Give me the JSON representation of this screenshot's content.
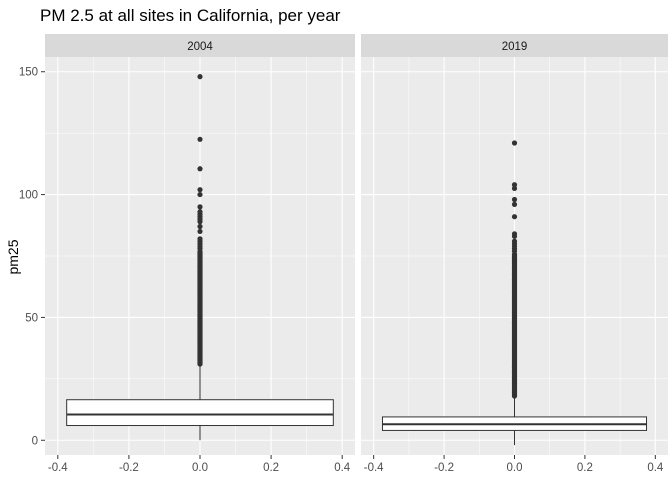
{
  "chart_data": {
    "type": "boxplot",
    "title": "PM 2.5 at all sites in California, per year",
    "ylabel": "pm25",
    "xlabel": "",
    "ylim": [
      -6,
      156
    ],
    "xlim": [
      -0.4,
      0.4
    ],
    "y_ticks": [
      0,
      50,
      100,
      150
    ],
    "y_tick_labels": [
      "0",
      "50",
      "100",
      "150"
    ],
    "x_ticks": [
      -0.4,
      -0.2,
      0.0,
      0.2,
      0.4
    ],
    "x_tick_labels": [
      "-0.4",
      "-0.2",
      "0.0",
      "0.2",
      "0.4"
    ],
    "grid": true,
    "legend": "none",
    "colors": {
      "panel_bg": "#EBEBEB",
      "strip_bg": "#D9D9D9",
      "grid": "#FFFFFF",
      "box_fill": "#FFFFFF",
      "line": "#333333",
      "outlier": "#333333"
    },
    "facets": [
      {
        "label": "2004",
        "box": {
          "q1": 6,
          "median": 10.5,
          "q3": 16.5,
          "whisker_low": 0,
          "whisker_high": 31
        },
        "box_x": [
          -0.375,
          0.375
        ],
        "outlier_range": [
          31,
          77
        ],
        "outliers": [
          78,
          79,
          80,
          81,
          82,
          85,
          87,
          89,
          90,
          91,
          92,
          93,
          95,
          100,
          102,
          110.5,
          122.5,
          148
        ]
      },
      {
        "label": "2019",
        "box": {
          "q1": 4,
          "median": 6.5,
          "q3": 9.5,
          "whisker_low": -2,
          "whisker_high": 18
        },
        "box_x": [
          -0.375,
          0.375
        ],
        "outlier_range": [
          18,
          76
        ],
        "outliers": [
          77,
          78,
          79,
          80,
          81,
          83,
          84,
          91,
          96,
          98,
          102.5,
          104,
          121
        ]
      }
    ]
  }
}
